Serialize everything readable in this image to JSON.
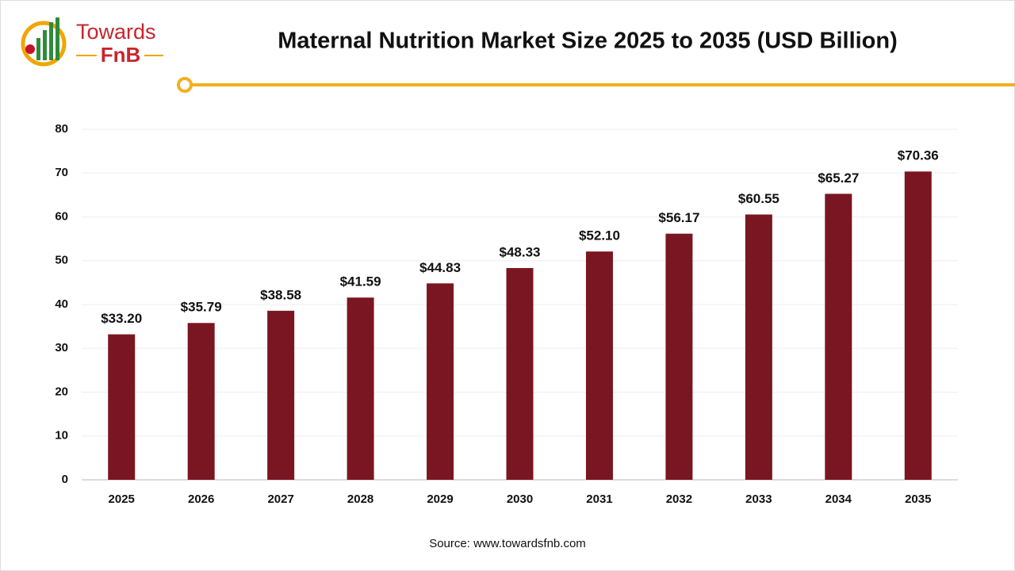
{
  "logo": {
    "line1": "Towards",
    "line2": "FnB"
  },
  "chart_data": {
    "type": "bar",
    "title": "Maternal Nutrition Market Size 2025 to 2035 (USD Billion)",
    "categories": [
      "2025",
      "2026",
      "2027",
      "2028",
      "2029",
      "2030",
      "2031",
      "2032",
      "2033",
      "2034",
      "2035"
    ],
    "values": [
      33.2,
      35.79,
      38.58,
      41.59,
      44.83,
      48.33,
      52.1,
      56.17,
      60.55,
      65.27,
      70.36
    ],
    "value_labels": [
      "$33.20",
      "$35.79",
      "$38.58",
      "$41.59",
      "$44.83",
      "$48.33",
      "$52.10",
      "$56.17",
      "$60.55",
      "$65.27",
      "$70.36"
    ],
    "color": "#7a1621",
    "ylim": [
      0,
      80
    ],
    "yticks": [
      0,
      10,
      20,
      30,
      40,
      50,
      60,
      70,
      80
    ],
    "grid": true,
    "source": "Source: www.towardsfnb.com"
  }
}
